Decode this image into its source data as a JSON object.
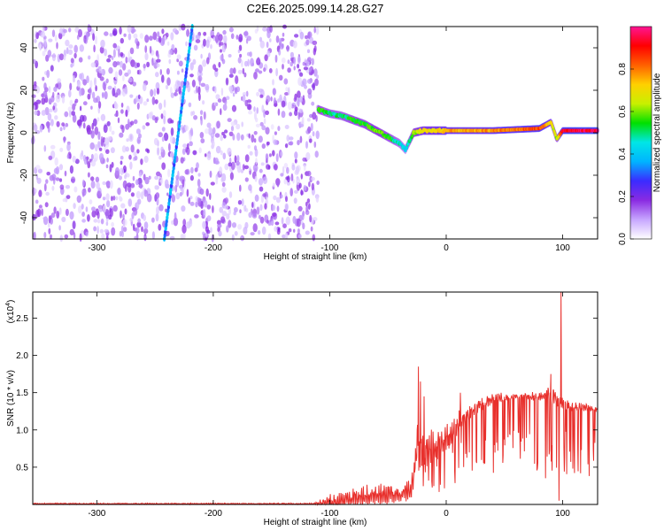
{
  "title": "C2E6.2025.099.14.28.G27",
  "chart_data": [
    {
      "type": "heatmap",
      "xlabel": "Height of straight line (km)",
      "ylabel": "Frequency (Hz)",
      "xlim": [
        -355,
        130
      ],
      "ylim": [
        -50,
        50
      ],
      "x_ticks": [
        -300,
        -200,
        -100,
        0,
        100
      ],
      "y_ticks": [
        -40,
        -20,
        0,
        20,
        40
      ],
      "colorbar": {
        "label": "Normalized spectral amplitude",
        "range": [
          0.0,
          1.0
        ],
        "ticks": [
          "0.0",
          "0.2",
          "0.4",
          "0.6",
          "0.8"
        ],
        "colors": [
          "#ffffff",
          "#c7a6ff",
          "#8a2be2",
          "#3b2bff",
          "#00b4ff",
          "#00e6e6",
          "#00e000",
          "#c8f000",
          "#ffd000",
          "#ff6000",
          "#ff0000",
          "#ff1493"
        ]
      },
      "noise_region": {
        "x_range": [
          -355,
          -110
        ],
        "level": 0.15
      },
      "streak": {
        "x_at_bottom": -242,
        "x_at_top": -218,
        "level": 0.35
      },
      "ridge": [
        {
          "x": -110,
          "y": 11,
          "level": 0.55
        },
        {
          "x": -100,
          "y": 9,
          "level": 0.5
        },
        {
          "x": -90,
          "y": 8,
          "level": 0.5
        },
        {
          "x": -80,
          "y": 6,
          "level": 0.55
        },
        {
          "x": -70,
          "y": 4,
          "level": 0.55
        },
        {
          "x": -60,
          "y": 1,
          "level": 0.6
        },
        {
          "x": -50,
          "y": -2,
          "level": 0.55
        },
        {
          "x": -40,
          "y": -5,
          "level": 0.45
        },
        {
          "x": -35,
          "y": -8,
          "level": 0.4
        },
        {
          "x": -28,
          "y": 0,
          "level": 0.6
        },
        {
          "x": -20,
          "y": 1,
          "level": 0.7
        },
        {
          "x": -10,
          "y": 1,
          "level": 0.7
        },
        {
          "x": 0,
          "y": 1,
          "level": 0.75
        },
        {
          "x": 20,
          "y": 1,
          "level": 0.75
        },
        {
          "x": 40,
          "y": 1,
          "level": 0.78
        },
        {
          "x": 60,
          "y": 1.5,
          "level": 0.8
        },
        {
          "x": 80,
          "y": 2,
          "level": 0.85
        },
        {
          "x": 90,
          "y": 5,
          "level": 0.7
        },
        {
          "x": 95,
          "y": -3,
          "level": 0.6
        },
        {
          "x": 100,
          "y": 1,
          "level": 0.92
        },
        {
          "x": 115,
          "y": 1,
          "level": 0.95
        },
        {
          "x": 130,
          "y": 1,
          "level": 0.95
        }
      ]
    },
    {
      "type": "line",
      "xlabel": "Height of straight line (km)",
      "ylabel": "SNR (10 * v/v)",
      "scale_label": "(x10",
      "scale_exponent": "4",
      "scale_close": ")",
      "xlim": [
        -355,
        130
      ],
      "ylim": [
        0,
        28500
      ],
      "x_ticks": [
        -300,
        -200,
        -100,
        0,
        100
      ],
      "y_tick_labels": [
        "0.5",
        "1.0",
        "1.5",
        "2.0",
        "2.5"
      ],
      "y_ticks": [
        5000,
        10000,
        15000,
        20000,
        25000
      ],
      "color": "#e8302c",
      "envelope": [
        {
          "x": -355,
          "base": 100,
          "amp": 200
        },
        {
          "x": -115,
          "base": 100,
          "amp": 200
        },
        {
          "x": -100,
          "base": 400,
          "amp": 2000
        },
        {
          "x": -80,
          "base": 1000,
          "amp": 2500
        },
        {
          "x": -60,
          "base": 1500,
          "amp": 3500
        },
        {
          "x": -40,
          "base": 1500,
          "amp": 2500
        },
        {
          "x": -30,
          "base": 2000,
          "amp": 3000
        },
        {
          "x": -25,
          "base": 8000,
          "amp": 6000
        },
        {
          "x": -20,
          "base": 7000,
          "amp": 6000
        },
        {
          "x": -10,
          "base": 8000,
          "amp": 5000
        },
        {
          "x": 0,
          "base": 9000,
          "amp": 4000
        },
        {
          "x": 10,
          "base": 11000,
          "amp": 3500
        },
        {
          "x": 20,
          "base": 12500,
          "amp": 2500
        },
        {
          "x": 30,
          "base": 13500,
          "amp": 2000
        },
        {
          "x": 40,
          "base": 14200,
          "amp": 1500
        },
        {
          "x": 60,
          "base": 14600,
          "amp": 1000
        },
        {
          "x": 80,
          "base": 14500,
          "amp": 1200
        },
        {
          "x": 90,
          "base": 15000,
          "amp": 3000
        },
        {
          "x": 100,
          "base": 13500,
          "amp": 2000
        },
        {
          "x": 130,
          "base": 12800,
          "amp": 600
        }
      ],
      "spikes": [
        {
          "x": -24,
          "y": 18500
        },
        {
          "x": -22,
          "y": 16500
        },
        {
          "x": -19,
          "y": 14500
        },
        {
          "x": 12,
          "y": 15000
        },
        {
          "x": 90,
          "y": 17500
        },
        {
          "x": 98.5,
          "y": 28500
        },
        {
          "x": 97,
          "y": 500
        }
      ]
    }
  ]
}
